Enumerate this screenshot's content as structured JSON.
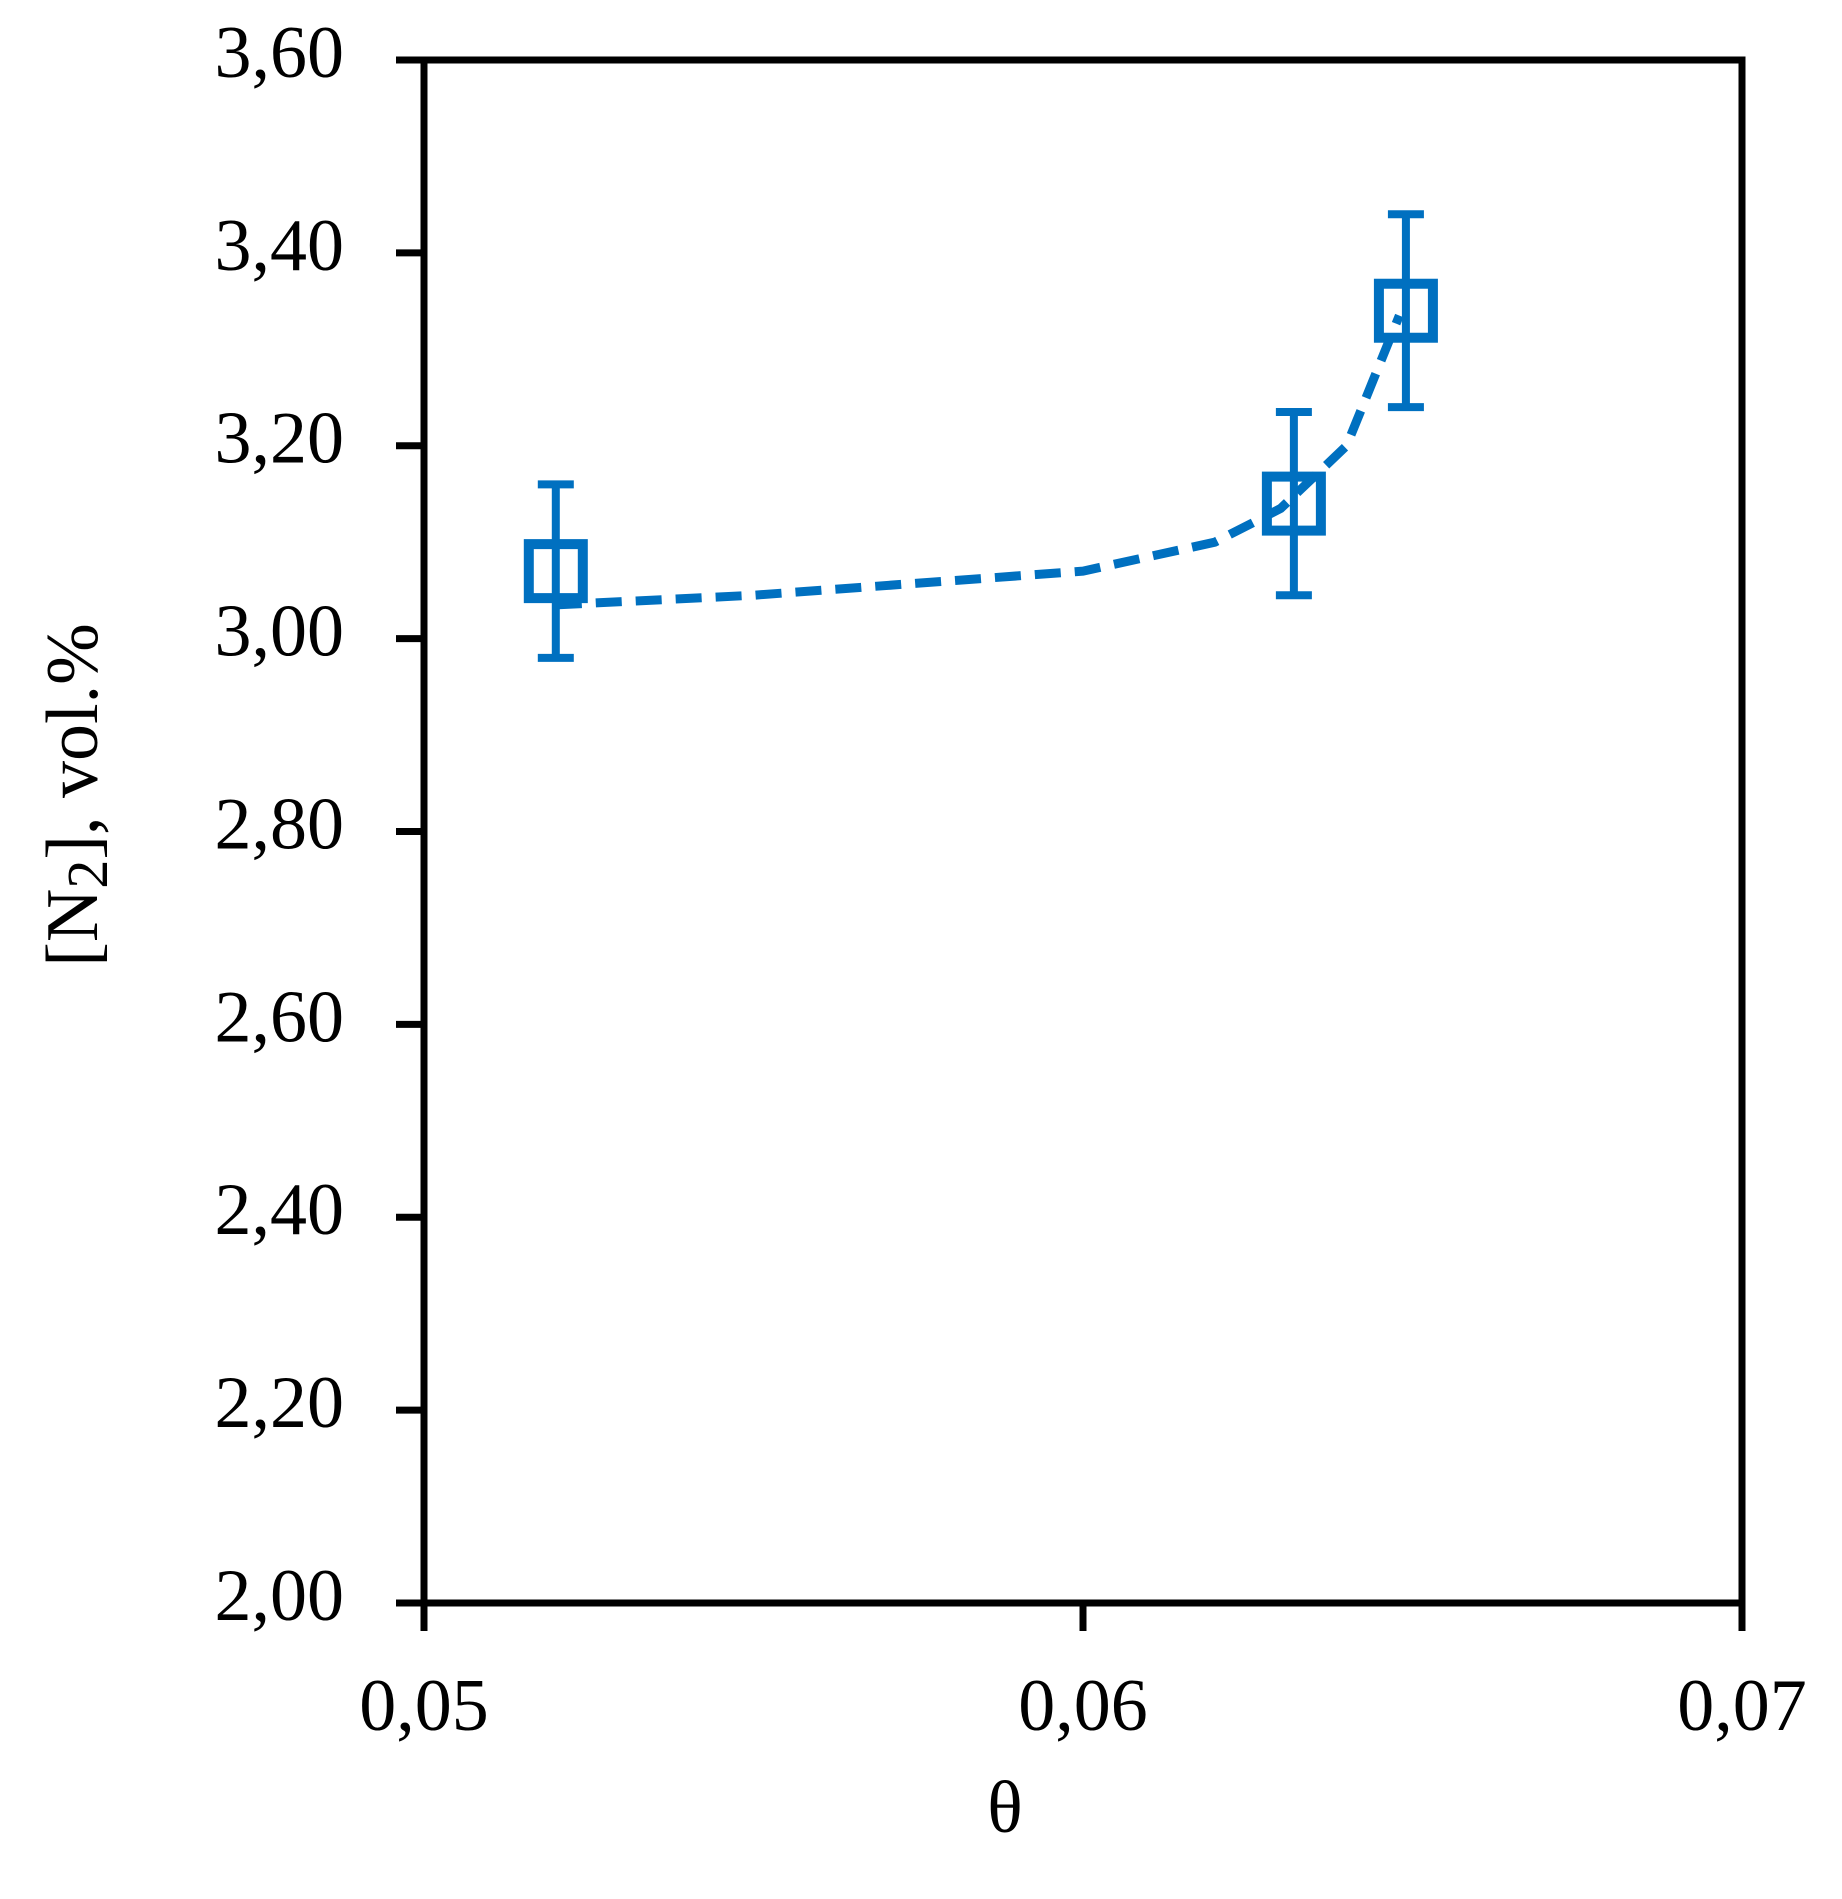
{
  "chart_data": {
    "type": "scatter",
    "xlabel": "θ",
    "ylabel": {
      "text": "[N",
      "subscript": "2",
      "rest": "], vol.%"
    },
    "series": [
      {
        "color": "#0070c0",
        "marker": "square-open",
        "x": [
          0.052,
          0.0632,
          0.0649
        ],
        "values": [
          3.07,
          3.14,
          3.34
        ],
        "errors": [
          0.09,
          0.095,
          0.1
        ]
      }
    ],
    "trend": {
      "color": "#0070c0",
      "style": "dashed",
      "x": [
        0.052,
        0.055,
        0.058,
        0.06,
        0.062,
        0.063,
        0.064,
        0.0648
      ],
      "values": [
        3.035,
        3.045,
        3.06,
        3.07,
        3.1,
        3.135,
        3.2,
        3.335
      ]
    },
    "xlim": [
      0.05,
      0.07
    ],
    "xticks": [
      {
        "value": 0.05,
        "label": "0,05"
      },
      {
        "value": 0.06,
        "label": "0,06"
      },
      {
        "value": 0.07,
        "label": "0,07"
      }
    ],
    "ylim": [
      2.0,
      3.6
    ],
    "yticks": [
      {
        "value": 2.0,
        "label": "2,00"
      },
      {
        "value": 2.2,
        "label": "2,20"
      },
      {
        "value": 2.4,
        "label": "2,40"
      },
      {
        "value": 2.6,
        "label": "2,60"
      },
      {
        "value": 2.8,
        "label": "2,80"
      },
      {
        "value": 3.0,
        "label": "3,00"
      },
      {
        "value": 3.2,
        "label": "3,20"
      },
      {
        "value": 3.4,
        "label": "3,40"
      },
      {
        "value": 3.6,
        "label": "3,60"
      }
    ],
    "grid": false
  }
}
